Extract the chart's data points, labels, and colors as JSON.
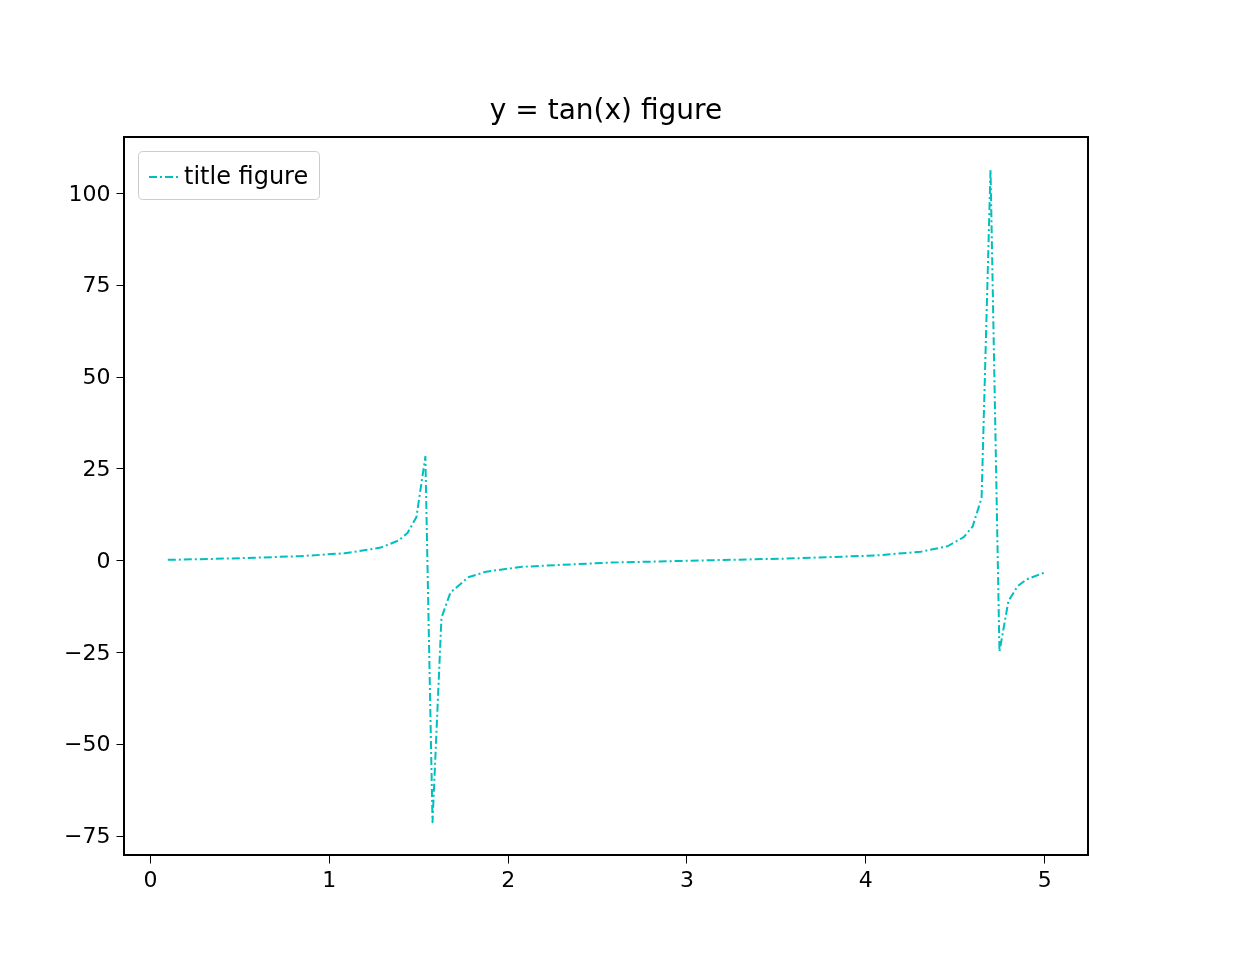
{
  "chart_data": {
    "type": "line",
    "title": "y = tan(x) figure",
    "x": [
      0.1,
      0.35,
      0.59,
      0.84,
      1.09,
      1.29,
      1.39,
      1.44,
      1.49,
      1.54,
      1.58,
      1.63,
      1.68,
      1.78,
      1.88,
      2.08,
      2.57,
      3.07,
      3.56,
      4.06,
      4.31,
      4.46,
      4.55,
      4.6,
      4.65,
      4.7,
      4.75,
      4.8,
      4.85,
      4.9,
      5.0
    ],
    "series": [
      {
        "name": "title figure",
        "color": "#00bfbf",
        "values": [
          0.1,
          0.36,
          0.68,
          1.12,
          1.9,
          3.44,
          5.38,
          7.4,
          11.75,
          28.2,
          -71.4,
          -15.7,
          -8.81,
          -4.65,
          -3.11,
          -1.79,
          -0.64,
          -0.07,
          0.45,
          1.3,
          2.33,
          3.81,
          6.28,
          9.19,
          16.96,
          106.4,
          -24.9,
          -11.13,
          -7.14,
          -5.24,
          -3.38
        ]
      }
    ],
    "xlim": [
      -0.145,
      5.245
    ],
    "xticks": [
      0,
      1,
      2,
      3,
      4,
      5
    ],
    "ylim": [
      -80.3,
      115.3
    ],
    "yticks": [
      {
        "value": -75,
        "label": "−75"
      },
      {
        "value": -50,
        "label": "−50"
      },
      {
        "value": -25,
        "label": "−25"
      },
      0,
      25,
      50,
      75,
      100
    ],
    "grid": false,
    "legend": "top left",
    "line_style": "dashdot",
    "marker": "none"
  }
}
